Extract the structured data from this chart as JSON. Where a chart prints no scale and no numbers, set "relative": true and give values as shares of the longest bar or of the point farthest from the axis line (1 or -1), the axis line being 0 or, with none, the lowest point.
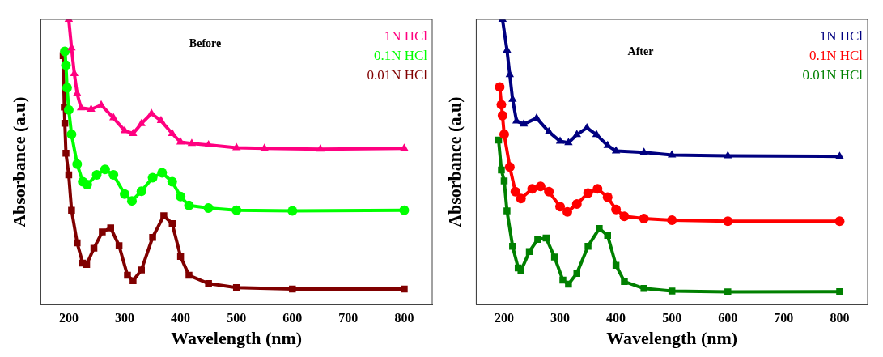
{
  "chart_data": [
    {
      "type": "line",
      "title": "Before",
      "xlabel": "Wavelength (nm)",
      "ylabel": "Absorbance (a.u)",
      "relative": true,
      "xlim": [
        150,
        850
      ],
      "xticks": [
        200,
        300,
        400,
        500,
        600,
        700,
        800
      ],
      "grid": false,
      "legend": "top right",
      "line_style": "solid",
      "series": [
        {
          "name": "1N HCl",
          "color": "#ff0080",
          "marker": "triangle",
          "x": [
            200,
            205,
            210,
            215,
            222,
            240,
            258,
            280,
            300,
            315,
            330,
            348,
            365,
            385,
            400,
            420,
            450,
            500,
            550,
            650,
            800
          ],
          "values": [
            1.0,
            0.9,
            0.81,
            0.74,
            0.69,
            0.685,
            0.7,
            0.655,
            0.61,
            0.6,
            0.635,
            0.67,
            0.645,
            0.6,
            0.57,
            0.565,
            0.56,
            0.55,
            0.548,
            0.545,
            0.548
          ]
        },
        {
          "name": "0.1N HCl",
          "color": "#00ff00",
          "marker": "circle",
          "x": [
            193,
            195,
            197,
            200,
            205,
            215,
            225,
            233,
            250,
            265,
            280,
            300,
            313,
            330,
            350,
            367,
            385,
            400,
            415,
            450,
            500,
            600,
            800
          ],
          "values": [
            0.888,
            0.84,
            0.76,
            0.683,
            0.597,
            0.493,
            0.431,
            0.421,
            0.455,
            0.474,
            0.455,
            0.388,
            0.364,
            0.398,
            0.445,
            0.462,
            0.431,
            0.379,
            0.348,
            0.339,
            0.331,
            0.329,
            0.331
          ]
        },
        {
          "name": "0.01N HCl",
          "color": "#800000",
          "marker": "square",
          "x": [
            190,
            192,
            193,
            195,
            200,
            205,
            215,
            225,
            232,
            245,
            260,
            275,
            290,
            305,
            315,
            330,
            350,
            370,
            385,
            400,
            415,
            450,
            500,
            600,
            800
          ],
          "values": [
            0.873,
            0.693,
            0.636,
            0.531,
            0.455,
            0.331,
            0.217,
            0.146,
            0.141,
            0.198,
            0.255,
            0.269,
            0.207,
            0.103,
            0.084,
            0.122,
            0.236,
            0.312,
            0.284,
            0.169,
            0.103,
            0.074,
            0.06,
            0.055,
            0.055
          ]
        }
      ]
    },
    {
      "type": "line",
      "title": "After",
      "xlabel": "Wavelength (nm)",
      "ylabel": "Absorbance (a.u)",
      "relative": true,
      "xlim": [
        150,
        850
      ],
      "xticks": [
        200,
        300,
        400,
        500,
        600,
        700,
        800
      ],
      "grid": false,
      "legend": "top right",
      "line_style": "solid",
      "series": [
        {
          "name": "1N HCl",
          "color": "#000080",
          "marker": "triangle",
          "x": [
            197,
            205,
            210,
            215,
            222,
            235,
            258,
            280,
            300,
            315,
            330,
            348,
            365,
            385,
            400,
            450,
            500,
            600,
            800
          ],
          "values": [
            1.0,
            0.892,
            0.806,
            0.72,
            0.644,
            0.633,
            0.654,
            0.606,
            0.573,
            0.568,
            0.596,
            0.62,
            0.596,
            0.558,
            0.539,
            0.534,
            0.525,
            0.522,
            0.52
          ]
        },
        {
          "name": "0.1N HCl",
          "color": "#ff0000",
          "marker": "circle",
          "x": [
            192,
            195,
            197,
            200,
            210,
            220,
            230,
            250,
            265,
            280,
            300,
            313,
            330,
            350,
            367,
            385,
            400,
            415,
            450,
            500,
            600,
            800
          ],
          "values": [
            0.763,
            0.701,
            0.663,
            0.597,
            0.483,
            0.396,
            0.372,
            0.406,
            0.415,
            0.396,
            0.344,
            0.325,
            0.353,
            0.391,
            0.406,
            0.377,
            0.334,
            0.31,
            0.302,
            0.296,
            0.293,
            0.293
          ]
        },
        {
          "name": "0.01N HCl",
          "color": "#008000",
          "marker": "square",
          "x": [
            190,
            195,
            200,
            205,
            215,
            225,
            230,
            245,
            260,
            275,
            290,
            305,
            315,
            330,
            350,
            370,
            385,
            400,
            415,
            450,
            500,
            600,
            800
          ],
          "values": [
            0.577,
            0.472,
            0.434,
            0.329,
            0.205,
            0.129,
            0.119,
            0.186,
            0.229,
            0.234,
            0.167,
            0.086,
            0.072,
            0.11,
            0.205,
            0.267,
            0.243,
            0.138,
            0.081,
            0.057,
            0.048,
            0.045,
            0.046
          ]
        }
      ]
    }
  ]
}
